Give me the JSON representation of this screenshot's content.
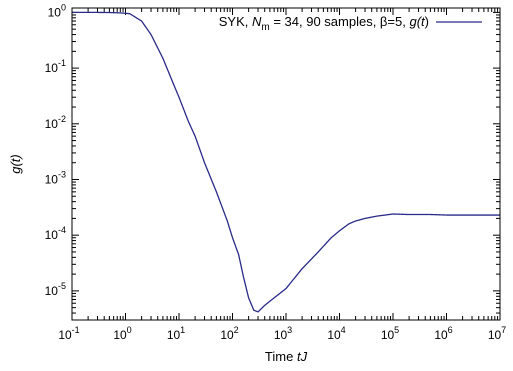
{
  "chart_data": {
    "type": "line",
    "title": "",
    "xlabel": {
      "prefix": "Time ",
      "var": "tJ"
    },
    "ylabel": {
      "open": "g(",
      "var": "t",
      "close": ")"
    },
    "x_scale": "log",
    "y_scale": "log",
    "xlim": [
      0.1,
      10000000
    ],
    "ylim": [
      3e-06,
      1.2
    ],
    "grid": false,
    "legend_position": "top-right",
    "x_ticks": [
      {
        "base": "10",
        "exp": "-1",
        "value": 0.1
      },
      {
        "base": "10",
        "exp": "0",
        "value": 1
      },
      {
        "base": "10",
        "exp": "1",
        "value": 10
      },
      {
        "base": "10",
        "exp": "2",
        "value": 100
      },
      {
        "base": "10",
        "exp": "3",
        "value": 1000
      },
      {
        "base": "10",
        "exp": "4",
        "value": 10000
      },
      {
        "base": "10",
        "exp": "5",
        "value": 100000
      },
      {
        "base": "10",
        "exp": "6",
        "value": 1000000
      },
      {
        "base": "10",
        "exp": "7",
        "value": 10000000
      }
    ],
    "y_ticks": [
      {
        "base": "10",
        "exp": "0",
        "value": 1
      },
      {
        "base": "10",
        "exp": "-1",
        "value": 0.1
      },
      {
        "base": "10",
        "exp": "-2",
        "value": 0.01
      },
      {
        "base": "10",
        "exp": "-3",
        "value": 0.001
      },
      {
        "base": "10",
        "exp": "-4",
        "value": 0.0001
      },
      {
        "base": "10",
        "exp": "-5",
        "value": 1e-05
      }
    ],
    "legend_parts": {
      "p1": "SYK, ",
      "N": "N",
      "sub": "m",
      "p2": " = 34, 90 samples, β=5, ",
      "g": "g(",
      "t": "t",
      "close": ")"
    },
    "series": [
      {
        "color": "#2a2a88",
        "x": [
          0.1,
          0.3,
          0.5,
          0.8,
          1.2,
          2,
          3,
          5,
          8,
          10,
          15,
          20,
          30,
          50,
          80,
          100,
          130,
          160,
          200,
          250,
          300,
          400,
          600,
          1000,
          2000,
          4000,
          7000,
          10000,
          15000,
          20000,
          30000,
          50000,
          100000,
          200000,
          500000,
          1000000,
          3000000,
          10000000
        ],
        "y": [
          1.0,
          1.0,
          0.995,
          0.98,
          0.95,
          0.7,
          0.4,
          0.15,
          0.05,
          0.03,
          0.011,
          0.006,
          0.002,
          0.0006,
          0.00018,
          9e-05,
          4.5e-05,
          1.8e-05,
          7.5e-06,
          4.5e-06,
          4.2e-06,
          5.5e-06,
          7.5e-06,
          1.1e-05,
          2.5e-05,
          5e-05,
          9e-05,
          0.00012,
          0.00016,
          0.00018,
          0.0002,
          0.00022,
          0.00024,
          0.000235,
          0.000235,
          0.00023,
          0.00023,
          0.00023
        ]
      }
    ]
  }
}
